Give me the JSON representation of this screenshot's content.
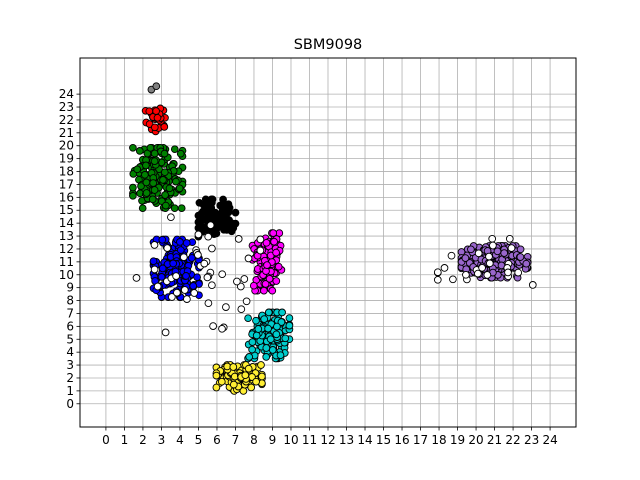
{
  "chart_data": {
    "type": "scatter",
    "title": "SBM9098",
    "xlabel": "",
    "ylabel": "",
    "x_ticks": [
      0,
      1,
      2,
      3,
      4,
      5,
      6,
      7,
      8,
      9,
      10,
      11,
      12,
      13,
      14,
      15,
      16,
      17,
      18,
      19,
      20,
      21,
      22,
      23,
      24
    ],
    "y_ticks": [
      0,
      1,
      2,
      3,
      4,
      5,
      6,
      7,
      8,
      9,
      10,
      11,
      12,
      13,
      14,
      15,
      16,
      17,
      18,
      19,
      20,
      21,
      22,
      23,
      24
    ],
    "xlim": [
      -1.4,
      25.4
    ],
    "ylim": [
      -1.8,
      26.8
    ],
    "grid": true,
    "legend": "none",
    "marker": "circle with black edge",
    "clusters": [
      {
        "color": "#ff0000",
        "center": [
          2.7,
          22.0
        ],
        "spread": [
          0.5,
          0.8
        ],
        "count": 28
      },
      {
        "color": "#008000",
        "center": [
          2.8,
          17.5
        ],
        "spread": [
          1.2,
          2.1
        ],
        "count": 170
      },
      {
        "color": "#000000",
        "center": [
          6.0,
          14.4
        ],
        "spread": [
          0.9,
          1.3
        ],
        "count": 95
      },
      {
        "color": "#0000ff",
        "center": [
          3.8,
          10.5
        ],
        "spread": [
          1.1,
          2.0
        ],
        "count": 170
      },
      {
        "color": "#ff00ff",
        "center": [
          8.7,
          11.0
        ],
        "spread": [
          0.7,
          2.0
        ],
        "count": 110
      },
      {
        "color": "#00cccc",
        "center": [
          8.8,
          5.3
        ],
        "spread": [
          1.0,
          1.6
        ],
        "count": 140
      },
      {
        "color": "#ffee33",
        "center": [
          7.2,
          2.0
        ],
        "spread": [
          1.1,
          0.9
        ],
        "count": 110
      },
      {
        "color": "#9966cc",
        "center": [
          21.0,
          11.0
        ],
        "spread": [
          1.6,
          1.1
        ],
        "count": 210
      },
      {
        "color": "#ffffff",
        "center": [
          5.0,
          10.0
        ],
        "spread": [
          3.0,
          4.0
        ],
        "count": 45
      },
      {
        "color": "#ffffff",
        "center": [
          20.5,
          11.0
        ],
        "spread": [
          2.3,
          1.6
        ],
        "count": 25
      },
      {
        "color": "#808080",
        "center": [
          2.5,
          24.5
        ],
        "spread": [
          0.2,
          0.2
        ],
        "count": 2
      }
    ]
  }
}
